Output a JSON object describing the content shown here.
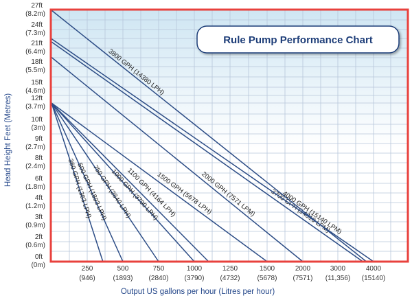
{
  "chart_data": {
    "type": "line",
    "title": "Rule Pump Performance Chart",
    "xlabel": "Output US gallons per hour (Litres per hour)",
    "ylabel": "Head Height Feet (Metres)",
    "xlim": [
      0,
      4000
    ],
    "ylim": [
      0,
      27
    ],
    "grid": true,
    "x_ticks": [
      {
        "value": 250,
        "label": "250",
        "sub": "(946)"
      },
      {
        "value": 500,
        "label": "500",
        "sub": "(1893)"
      },
      {
        "value": 750,
        "label": "750",
        "sub": "(2840)"
      },
      {
        "value": 1000,
        "label": "1000",
        "sub": "(3790)"
      },
      {
        "value": 1250,
        "label": "1250",
        "sub": "(4732)"
      },
      {
        "value": 1500,
        "label": "1500",
        "sub": "(5678)"
      },
      {
        "value": 2000,
        "label": "2000",
        "sub": "(7571)"
      },
      {
        "value": 3000,
        "label": "3000",
        "sub": "(11,356)"
      },
      {
        "value": 4000,
        "label": "4000",
        "sub": "(15140)"
      }
    ],
    "y_ticks": [
      {
        "value": 27,
        "label": "27ft",
        "sub": "(8.2m)"
      },
      {
        "value": 24,
        "label": "24ft",
        "sub": "(7.3m)"
      },
      {
        "value": 21,
        "label": "21ft",
        "sub": "(6.4m)"
      },
      {
        "value": 18,
        "label": "18ft",
        "sub": "(5.5m)"
      },
      {
        "value": 15,
        "label": "15ft",
        "sub": "(4.6m)"
      },
      {
        "value": 12,
        "label": "12ft",
        "sub": "(3.7m)"
      },
      {
        "value": 10,
        "label": "10ft",
        "sub": "(3m)"
      },
      {
        "value": 9,
        "label": "9ft",
        "sub": "(2.7m)"
      },
      {
        "value": 8,
        "label": "8ft",
        "sub": "(2.4m)"
      },
      {
        "value": 6,
        "label": "6ft",
        "sub": "(1.8m)"
      },
      {
        "value": 4,
        "label": "4ft",
        "sub": "(1.2m)"
      },
      {
        "value": 3,
        "label": "3ft",
        "sub": "(0.9m)"
      },
      {
        "value": 2,
        "label": "2ft",
        "sub": "(0.6m)"
      },
      {
        "value": 0,
        "label": "0ft",
        "sub": "(0m)"
      }
    ],
    "series": [
      {
        "name": "360 GPH (1363 LPH)",
        "points": [
          [
            0,
            12
          ],
          [
            360,
            0
          ]
        ]
      },
      {
        "name": "500 GPH (1893 LPH)",
        "points": [
          [
            0,
            12
          ],
          [
            500,
            0
          ]
        ]
      },
      {
        "name": "750 GPH (2840 LPH)",
        "points": [
          [
            0,
            12
          ],
          [
            750,
            0
          ]
        ]
      },
      {
        "name": "1000 GPH (3790 LPH)",
        "points": [
          [
            0,
            12
          ],
          [
            1000,
            0
          ]
        ]
      },
      {
        "name": "1100 GPH (4164 LPH)",
        "points": [
          [
            0,
            12
          ],
          [
            1100,
            0
          ]
        ]
      },
      {
        "name": "1500 GPH (5678 LPH)",
        "points": [
          [
            0,
            12
          ],
          [
            1500,
            0
          ]
        ]
      },
      {
        "name": "2000 GPH (7571 LPM)",
        "points": [
          [
            0,
            19.5
          ],
          [
            2000,
            0
          ]
        ]
      },
      {
        "name": "3700 GPH (14010 LPM)",
        "points": [
          [
            0,
            22
          ],
          [
            3700,
            0
          ]
        ]
      },
      {
        "name": "3800 GPH (14380 LPH)",
        "points": [
          [
            0,
            27
          ],
          [
            3800,
            0
          ]
        ]
      },
      {
        "name": "4000 GPH (15140 LPM)",
        "points": [
          [
            0,
            22.5
          ],
          [
            4000,
            0
          ]
        ]
      }
    ],
    "colors": {
      "line": "#2d4d86",
      "frame": "#e8413d",
      "grid": "#b7c6da",
      "title_box_border": "#1d3d78",
      "background_top": "#cfe6f3",
      "background_bottom": "#ffffff"
    }
  }
}
